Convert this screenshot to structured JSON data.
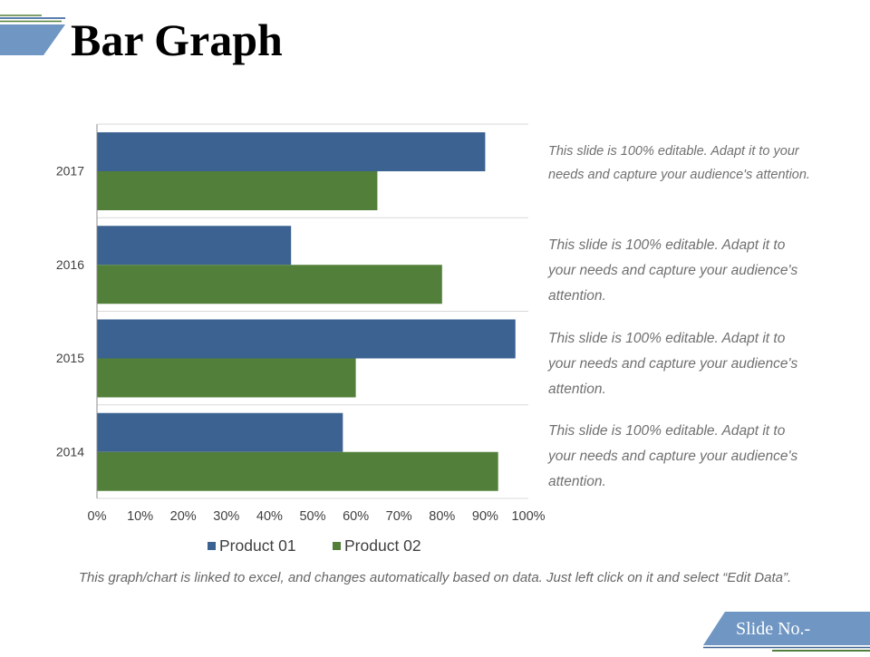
{
  "slide": {
    "title": "Bar Graph",
    "footer": "This graph/chart is linked to excel, and changes automatically based on data. Just left click on it and select “Edit Data”.",
    "slide_no": "Slide No.-",
    "notes": [
      "This slide is 100% editable. Adapt it to your needs and capture your audience's attention.",
      "This slide is 100% editable. Adapt it to your needs and capture your audience's attention.",
      "This slide is 100% editable. Adapt it to your needs and capture your audience's attention.",
      "This slide is 100% editable. Adapt it to your needs and capture your audience's attention."
    ]
  },
  "colors": {
    "product_01": "#3b6291",
    "product_02": "#52803a",
    "accent_blue": "#7096c3",
    "accent_green": "#52803a"
  },
  "chart_data": {
    "type": "bar",
    "orientation": "horizontal",
    "categories": [
      "2017",
      "2016",
      "2015",
      "2014"
    ],
    "series": [
      {
        "name": "Product 01",
        "values": [
          90,
          45,
          97,
          57
        ]
      },
      {
        "name": "Product 02",
        "values": [
          65,
          80,
          60,
          93
        ]
      }
    ],
    "x_ticks": [
      "0%",
      "10%",
      "20%",
      "30%",
      "40%",
      "50%",
      "60%",
      "70%",
      "80%",
      "90%",
      "100%"
    ],
    "xlim": [
      0,
      100
    ],
    "legend_position": "bottom",
    "grid": "horizontal category separators"
  }
}
